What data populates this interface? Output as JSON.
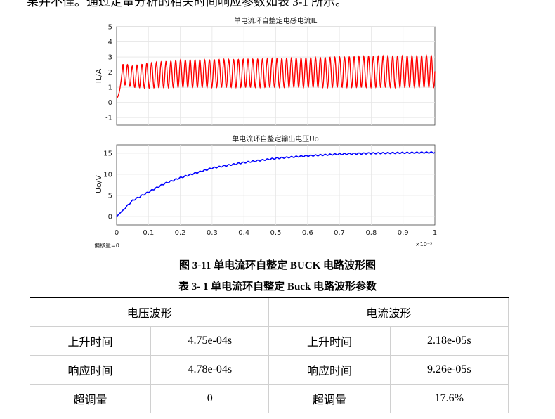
{
  "top_text": "果并不佳。通过定量分析的相关时间响应参数如表 3-1 所示。",
  "chart_data": [
    {
      "type": "line",
      "title": "单电流环自整定电感电流IL",
      "xlabel": "",
      "ylabel": "IL/A",
      "xlim": [
        0,
        0.001
      ],
      "ylim": [
        -1.5,
        5
      ],
      "y_ticks": [
        "5",
        "4",
        "3",
        "2",
        "1",
        "0",
        "-1"
      ],
      "grid": true,
      "series": [
        {
          "color": "#ff0000",
          "description": "oscillating inductor current; startup peak ~2.6 A then ripple between ~1.0 and ~2.9 A, upper envelope rising to ~3.1 A",
          "x": [
            0,
            2e-05,
            5e-05,
            0.0001,
            0.0002,
            0.0004,
            0.0006,
            0.0008,
            0.001
          ],
          "upper": [
            0.3,
            2.6,
            2.4,
            2.6,
            2.8,
            2.85,
            2.95,
            3.05,
            3.1
          ],
          "lower": [
            0.3,
            1.2,
            1.0,
            0.95,
            1.0,
            1.0,
            1.0,
            1.0,
            1.0
          ]
        }
      ]
    },
    {
      "type": "line",
      "title": "单电流环自整定输出电压Uo",
      "xlabel": "",
      "ylabel": "Uo/V",
      "xlim": [
        0,
        1
      ],
      "x_ticks": [
        "0",
        "0.1",
        "0.2",
        "0.3",
        "0.4",
        "0.5",
        "0.6",
        "0.7",
        "0.8",
        "0.9",
        "1"
      ],
      "x_multiplier": "×10⁻³",
      "ylim": [
        -2,
        17
      ],
      "y_ticks": [
        "15",
        "10",
        "5",
        "0"
      ],
      "grid": true,
      "series": [
        {
          "color": "#0000ff",
          "x": [
            0,
            0.02,
            0.05,
            0.1,
            0.15,
            0.2,
            0.3,
            0.4,
            0.5,
            0.6,
            0.7,
            0.8,
            0.9,
            1.0
          ],
          "y": [
            0,
            1.5,
            3.8,
            5.8,
            7.8,
            9.2,
            11.5,
            12.8,
            13.8,
            14.4,
            14.8,
            15.0,
            15.1,
            15.2
          ]
        }
      ]
    }
  ],
  "offset_label": "偏移量=0",
  "figure_caption": "图 3-11  单电流环自整定 BUCK 电路波形图",
  "table_caption": "表 3- 1  单电流环自整定 Buck 电路波形参数",
  "table": {
    "headers": [
      "电压波形",
      "电流波形"
    ],
    "rows": [
      [
        "上升时间",
        "4.75e-04s",
        "上升时间",
        "2.18e-05s"
      ],
      [
        "响应时间",
        "4.78e-04s",
        "响应时间",
        "9.26e-05s"
      ],
      [
        "超调量",
        "0",
        "超调量",
        "17.6%"
      ]
    ]
  }
}
